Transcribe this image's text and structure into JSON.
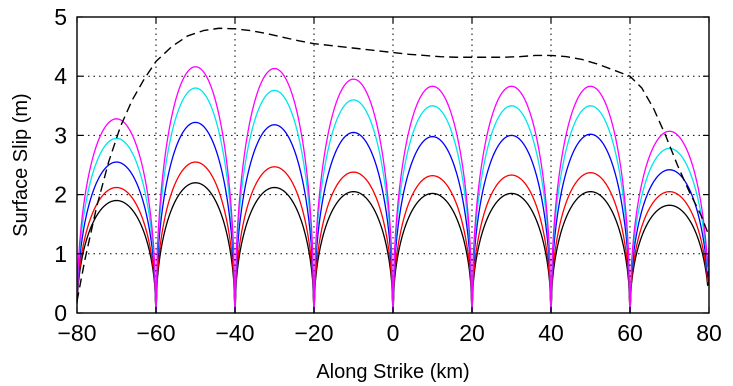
{
  "chart_data": {
    "type": "line",
    "title": "",
    "xlabel": "Along Strike (km)",
    "ylabel": "Surface Slip (m)",
    "xlim": [
      -80,
      80
    ],
    "ylim": [
      0,
      5
    ],
    "x_ticks": [
      -80,
      -60,
      -40,
      -20,
      0,
      20,
      40,
      60,
      80
    ],
    "y_ticks": [
      0,
      1,
      2,
      3,
      4,
      5
    ],
    "x_tick_labels": [
      "−80",
      "−60",
      "−40",
      "−20",
      "0",
      "20",
      "40",
      "60",
      "80"
    ],
    "y_tick_labels": [
      "0",
      "1",
      "2",
      "3",
      "4",
      "5"
    ],
    "grid": true,
    "grid_style": "dotted",
    "legend": false,
    "segment_boundaries": [
      -80,
      -60,
      -40,
      -20,
      0,
      20,
      40,
      60,
      80
    ],
    "series": [
      {
        "color": "#000000",
        "style": "solid",
        "segment_peaks": [
          1.9,
          2.2,
          2.12,
          2.05,
          2.02,
          2.02,
          2.05,
          1.82
        ],
        "edge_values": [
          0.15,
          0.65
        ]
      },
      {
        "color": "#ff0000",
        "style": "solid",
        "segment_peaks": [
          2.12,
          2.55,
          2.47,
          2.38,
          2.32,
          2.33,
          2.37,
          2.05
        ],
        "edge_values": [
          0.18,
          0.75
        ]
      },
      {
        "color": "#0000ff",
        "style": "solid",
        "segment_peaks": [
          2.55,
          3.22,
          3.18,
          3.05,
          2.98,
          3.0,
          3.02,
          2.42
        ],
        "edge_values": [
          0.2,
          0.9
        ]
      },
      {
        "color": "#00e5ee",
        "style": "solid",
        "segment_peaks": [
          2.95,
          3.8,
          3.76,
          3.6,
          3.5,
          3.5,
          3.5,
          2.78
        ],
        "edge_values": [
          0.22,
          1.0
        ]
      },
      {
        "color": "#ff00ff",
        "style": "solid",
        "segment_peaks": [
          3.28,
          4.16,
          4.13,
          3.95,
          3.83,
          3.83,
          3.83,
          3.07
        ],
        "edge_values": [
          0.25,
          1.1
        ]
      },
      {
        "color": "#000000",
        "style": "dashed",
        "x": [
          -80,
          -78,
          -75,
          -72,
          -69,
          -66,
          -63,
          -60,
          -56,
          -52,
          -48,
          -44,
          -40,
          -36,
          -32,
          -28,
          -24,
          -20,
          -16,
          -12,
          -8,
          -4,
          0,
          4,
          8,
          12,
          16,
          20,
          24,
          28,
          32,
          36,
          40,
          44,
          48,
          52,
          56,
          60,
          63,
          66,
          69,
          72,
          75,
          78,
          80
        ],
        "y": [
          0.2,
          0.9,
          1.8,
          2.55,
          3.15,
          3.6,
          3.95,
          4.25,
          4.5,
          4.68,
          4.77,
          4.81,
          4.8,
          4.77,
          4.72,
          4.66,
          4.6,
          4.55,
          4.52,
          4.49,
          4.46,
          4.43,
          4.4,
          4.37,
          4.35,
          4.33,
          4.32,
          4.32,
          4.32,
          4.32,
          4.33,
          4.35,
          4.35,
          4.33,
          4.28,
          4.2,
          4.1,
          4.0,
          3.8,
          3.45,
          3.0,
          2.5,
          2.05,
          1.65,
          1.3
        ]
      }
    ]
  }
}
